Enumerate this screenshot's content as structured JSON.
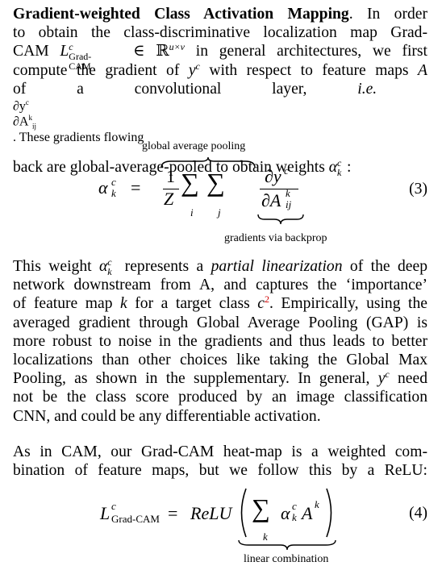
{
  "paragraph1": {
    "heading": "Gradient-weighted Class Activation Mapping",
    "lines": [
      " In order",
      "to obtain the class-discriminative localization map Grad-",
      "CAM ",
      " in general architectures, we first",
      "compute the gradient of ",
      " with respect to feature maps ",
      "of a convolutional layer, ",
      "i.e.",
      ". These gradients flowing",
      "back are global-average-pooled to obtain weights "
    ]
  },
  "equation3": {
    "label_top": "global average pooling",
    "label_bottom": "gradients via backprop",
    "number": "(3)"
  },
  "paragraph2": {
    "text_a": "This weight ",
    "text_b": " represents a ",
    "emph": "partial linearization",
    "text_c": " of the deep",
    "line2": "network downstream from A, and captures the ‘importance’",
    "line3a": "of feature map ",
    "line3b": " for a target class ",
    "footnote": "2",
    "line3c": ". Empirically, using the",
    "line4": "averaged gradient through Global Average Pooling (GAP) is",
    "line5": "more robust to noise in the gradients and thus leads to better",
    "line6": "localizations than other choices like taking the Global Max",
    "line7a": "Pooling, as shown in the supplementary. In general, ",
    "line7b": " need",
    "line8": "not be the class score produced by an image classification",
    "line9": "CNN, and could be any differentiable activation."
  },
  "paragraph3": {
    "line1": "As in CAM, our Grad-CAM heat-map is a weighted com-",
    "line2": "bination of feature maps, but we follow this by a ReLU:"
  },
  "equation4": {
    "relu": "ReLU",
    "label_bottom": "linear combination",
    "number": "(4)"
  }
}
